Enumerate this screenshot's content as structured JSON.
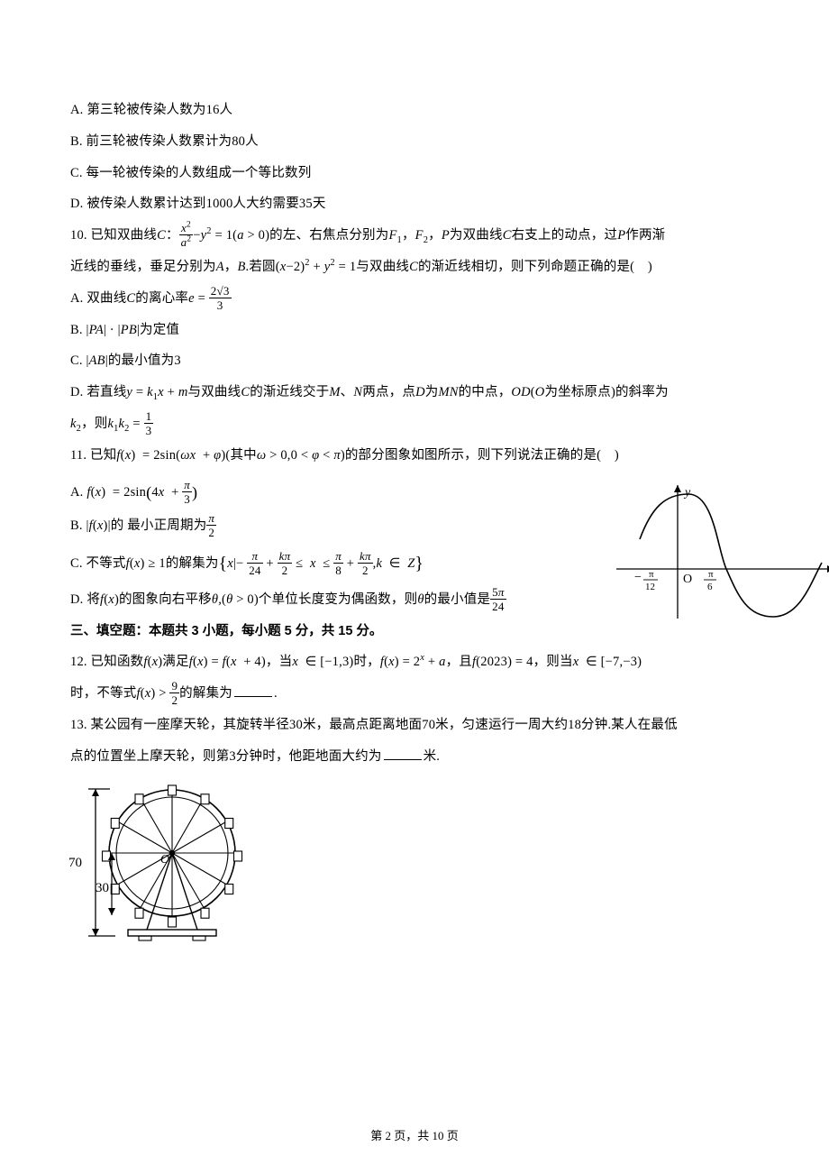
{
  "q9": {
    "A": "A. 第三轮被传染人数为16人",
    "B": "B. 前三轮被传染人数累计为80人",
    "C": "C. 每一轮被传染的人数组成一个等比数列",
    "D": "D. 被传染人数累计达到1000人大约需要35天"
  },
  "q10": {
    "stem1_a": "10. 已知双曲线",
    "stem1_b": "的左、右焦点分别为",
    "stem1_c": "，",
    "stem1_d": "为双曲线",
    "stem1_e": "右支上的动点，过",
    "stem1_f": "作两渐",
    "stem2_a": "近线的垂线，垂足分别为",
    "stem2_b": "若圆",
    "stem2_c": "与双曲线",
    "stem2_d": "的渐近线相切，则下列命题正确的是( )",
    "A_a": "A. 双曲线",
    "A_b": "的离心率",
    "B": "B. |PA| · |PB|为定值",
    "C": "C. |AB|的最小值为3",
    "D_a": "D. 若直线",
    "D_b": "与双曲线",
    "D_c": "的渐近线交于",
    "D_d": "两点，点",
    "D_e": "为",
    "D_f": "的中点，",
    "D_g": "为坐标原点)的斜率为",
    "D2_a": "，则"
  },
  "q11": {
    "stem_a": "11. 已知",
    "stem_b": "(其中",
    "stem_c": ")的部分图象如图所示，则下列说法正确的是( )",
    "A": "A. ",
    "B_a": "B. ",
    "B_b": "的 最小正周期为",
    "C_a": "C. 不等式",
    "C_b": "的解集为",
    "D_a": "D. 将",
    "D_b": "的图象向右平移",
    "D_c": "个单位长度变为偶函数，则",
    "D_d": "的最小值是"
  },
  "sectionIII": "三、填空题：本题共 3 小题，每小题 5 分，共 15 分。",
  "q12": {
    "stem1_a": "12. 已知函数",
    "stem1_b": "满足",
    "stem1_c": "，当",
    "stem1_d": "时，",
    "stem1_e": "，且",
    "stem1_f": "，则当",
    "stem2_a": "时，不等式",
    "stem2_b": "的解集为",
    "period": "."
  },
  "q13": {
    "stem1": "13. 某公园有一座摩天轮，其旋转半径30米，最高点距离地面70米，匀速运行一周大约18分钟.某人在最低",
    "stem2_a": "点的位置坐上摩天轮，则第3分钟时，他距地面大约为",
    "stem2_b": "米."
  },
  "pager": "第 2 页，共 10 页",
  "figures": {
    "sine": {
      "axis_color": "#000000",
      "curve_color": "#000000",
      "stroke_width": 1.4,
      "xlabel": "x",
      "ylabel": "y",
      "origin": "O",
      "tick_left_num": "π",
      "tick_left_den": "12",
      "tick_right_num": "π",
      "tick_right_den": "6"
    },
    "wheel": {
      "stroke": "#000000",
      "n_spokes": 12,
      "h_total": "70",
      "h_small": "30",
      "center": "O"
    }
  },
  "colors": {
    "text": "#000000",
    "bg": "#ffffff"
  }
}
